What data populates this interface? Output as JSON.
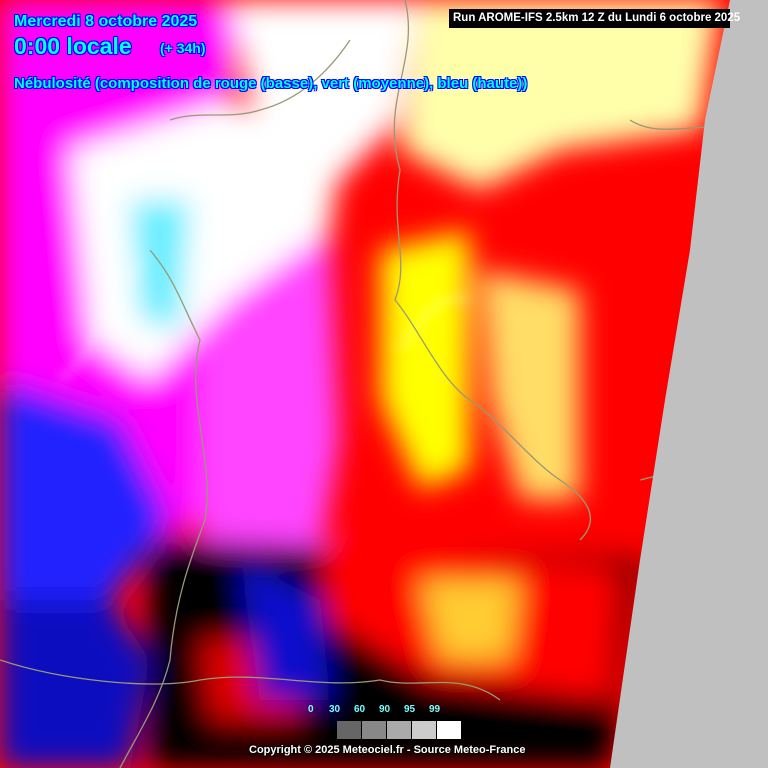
{
  "header": {
    "date": "Mercredi 8 octobre 2025",
    "hour": "0:00 locale",
    "lead": "(+ 34h)",
    "parameter": "Nébulosité (composition de rouge (basse), vert (moyenne), bleu (haute))",
    "run": "Run AROME-IFS 2.5km 12 Z du Lundi 6 octobre 2025"
  },
  "legend": {
    "labels": [
      "0",
      "30",
      "60",
      "90",
      "95",
      "99"
    ],
    "colors": [
      "#666666",
      "#888888",
      "#aaaaaa",
      "#cccccc",
      "#ffffff"
    ]
  },
  "footer": {
    "copyright": "Copyright © 2025 Meteociel.fr - Source Meteo-France"
  },
  "colors": {
    "low_cloud": "#ff0000",
    "mid_cloud": "#00ff00",
    "high_cloud": "#0000ff",
    "outside_domain": "#c0c0c0"
  }
}
